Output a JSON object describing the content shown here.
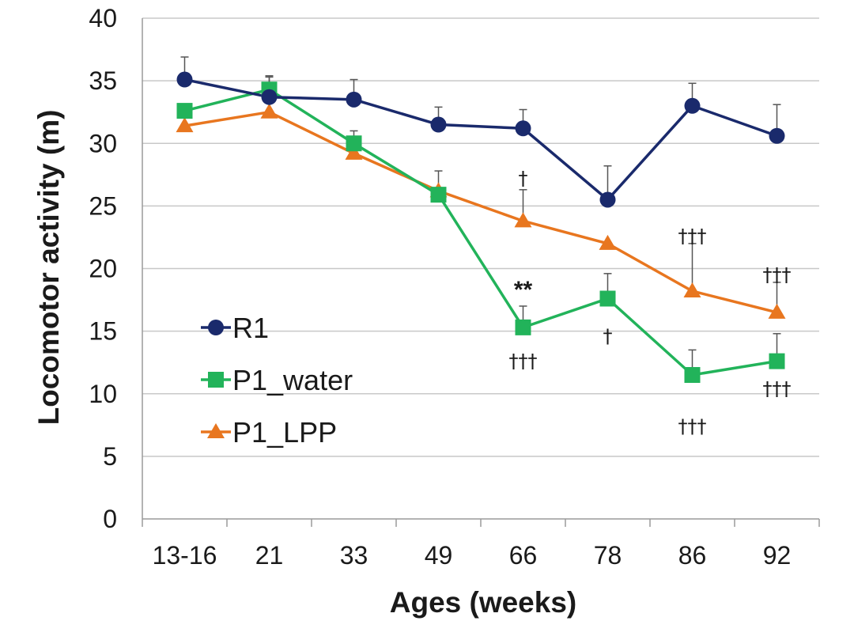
{
  "chart_data": {
    "type": "line",
    "title": "",
    "xlabel": "Ages (weeks)",
    "ylabel": "Locomotor activity (m)",
    "categories": [
      "13-16",
      "21",
      "33",
      "49",
      "66",
      "78",
      "86",
      "92"
    ],
    "ylim": [
      0,
      40
    ],
    "yticks": [
      0,
      5,
      10,
      15,
      20,
      25,
      30,
      35,
      40
    ],
    "grid": true,
    "legend_position": "left",
    "series": [
      {
        "name": "R1",
        "color": "#1a2a6c",
        "marker": "circle",
        "values": [
          35.1,
          33.7,
          33.5,
          31.5,
          31.2,
          25.5,
          33.0,
          30.6
        ],
        "error_upper": [
          36.9,
          35.3,
          35.1,
          32.9,
          32.7,
          28.2,
          34.8,
          33.1
        ]
      },
      {
        "name": "P1_water",
        "color": "#22b35a",
        "marker": "square",
        "values": [
          32.6,
          34.3,
          30.0,
          25.9,
          15.3,
          17.6,
          11.5,
          12.6
        ],
        "error_upper": [
          null,
          35.4,
          31.0,
          27.8,
          17.0,
          19.6,
          13.5,
          14.8
        ]
      },
      {
        "name": "P1_LPP",
        "color": "#e8761f",
        "marker": "triangle",
        "values": [
          31.4,
          32.5,
          29.2,
          26.2,
          23.8,
          22.0,
          18.2,
          16.5
        ],
        "error_upper": [
          null,
          null,
          null,
          null,
          26.3,
          null,
          22.0,
          18.9
        ]
      }
    ],
    "annotations": [
      {
        "text": "†",
        "category": "66",
        "y": 27.2,
        "style": "dagger"
      },
      {
        "text": "**",
        "category": "66",
        "y": 18.2,
        "style": "star"
      },
      {
        "text": "†††",
        "category": "66",
        "y": 12.6,
        "style": "dagger"
      },
      {
        "text": "†",
        "category": "78",
        "y": 14.6,
        "style": "dagger"
      },
      {
        "text": "†††",
        "category": "86",
        "y": 22.6,
        "style": "dagger"
      },
      {
        "text": "†††",
        "category": "86",
        "y": 7.4,
        "style": "dagger"
      },
      {
        "text": "†††",
        "category": "92",
        "y": 19.5,
        "style": "dagger"
      },
      {
        "text": "†††",
        "category": "92",
        "y": 10.4,
        "style": "dagger"
      }
    ]
  }
}
